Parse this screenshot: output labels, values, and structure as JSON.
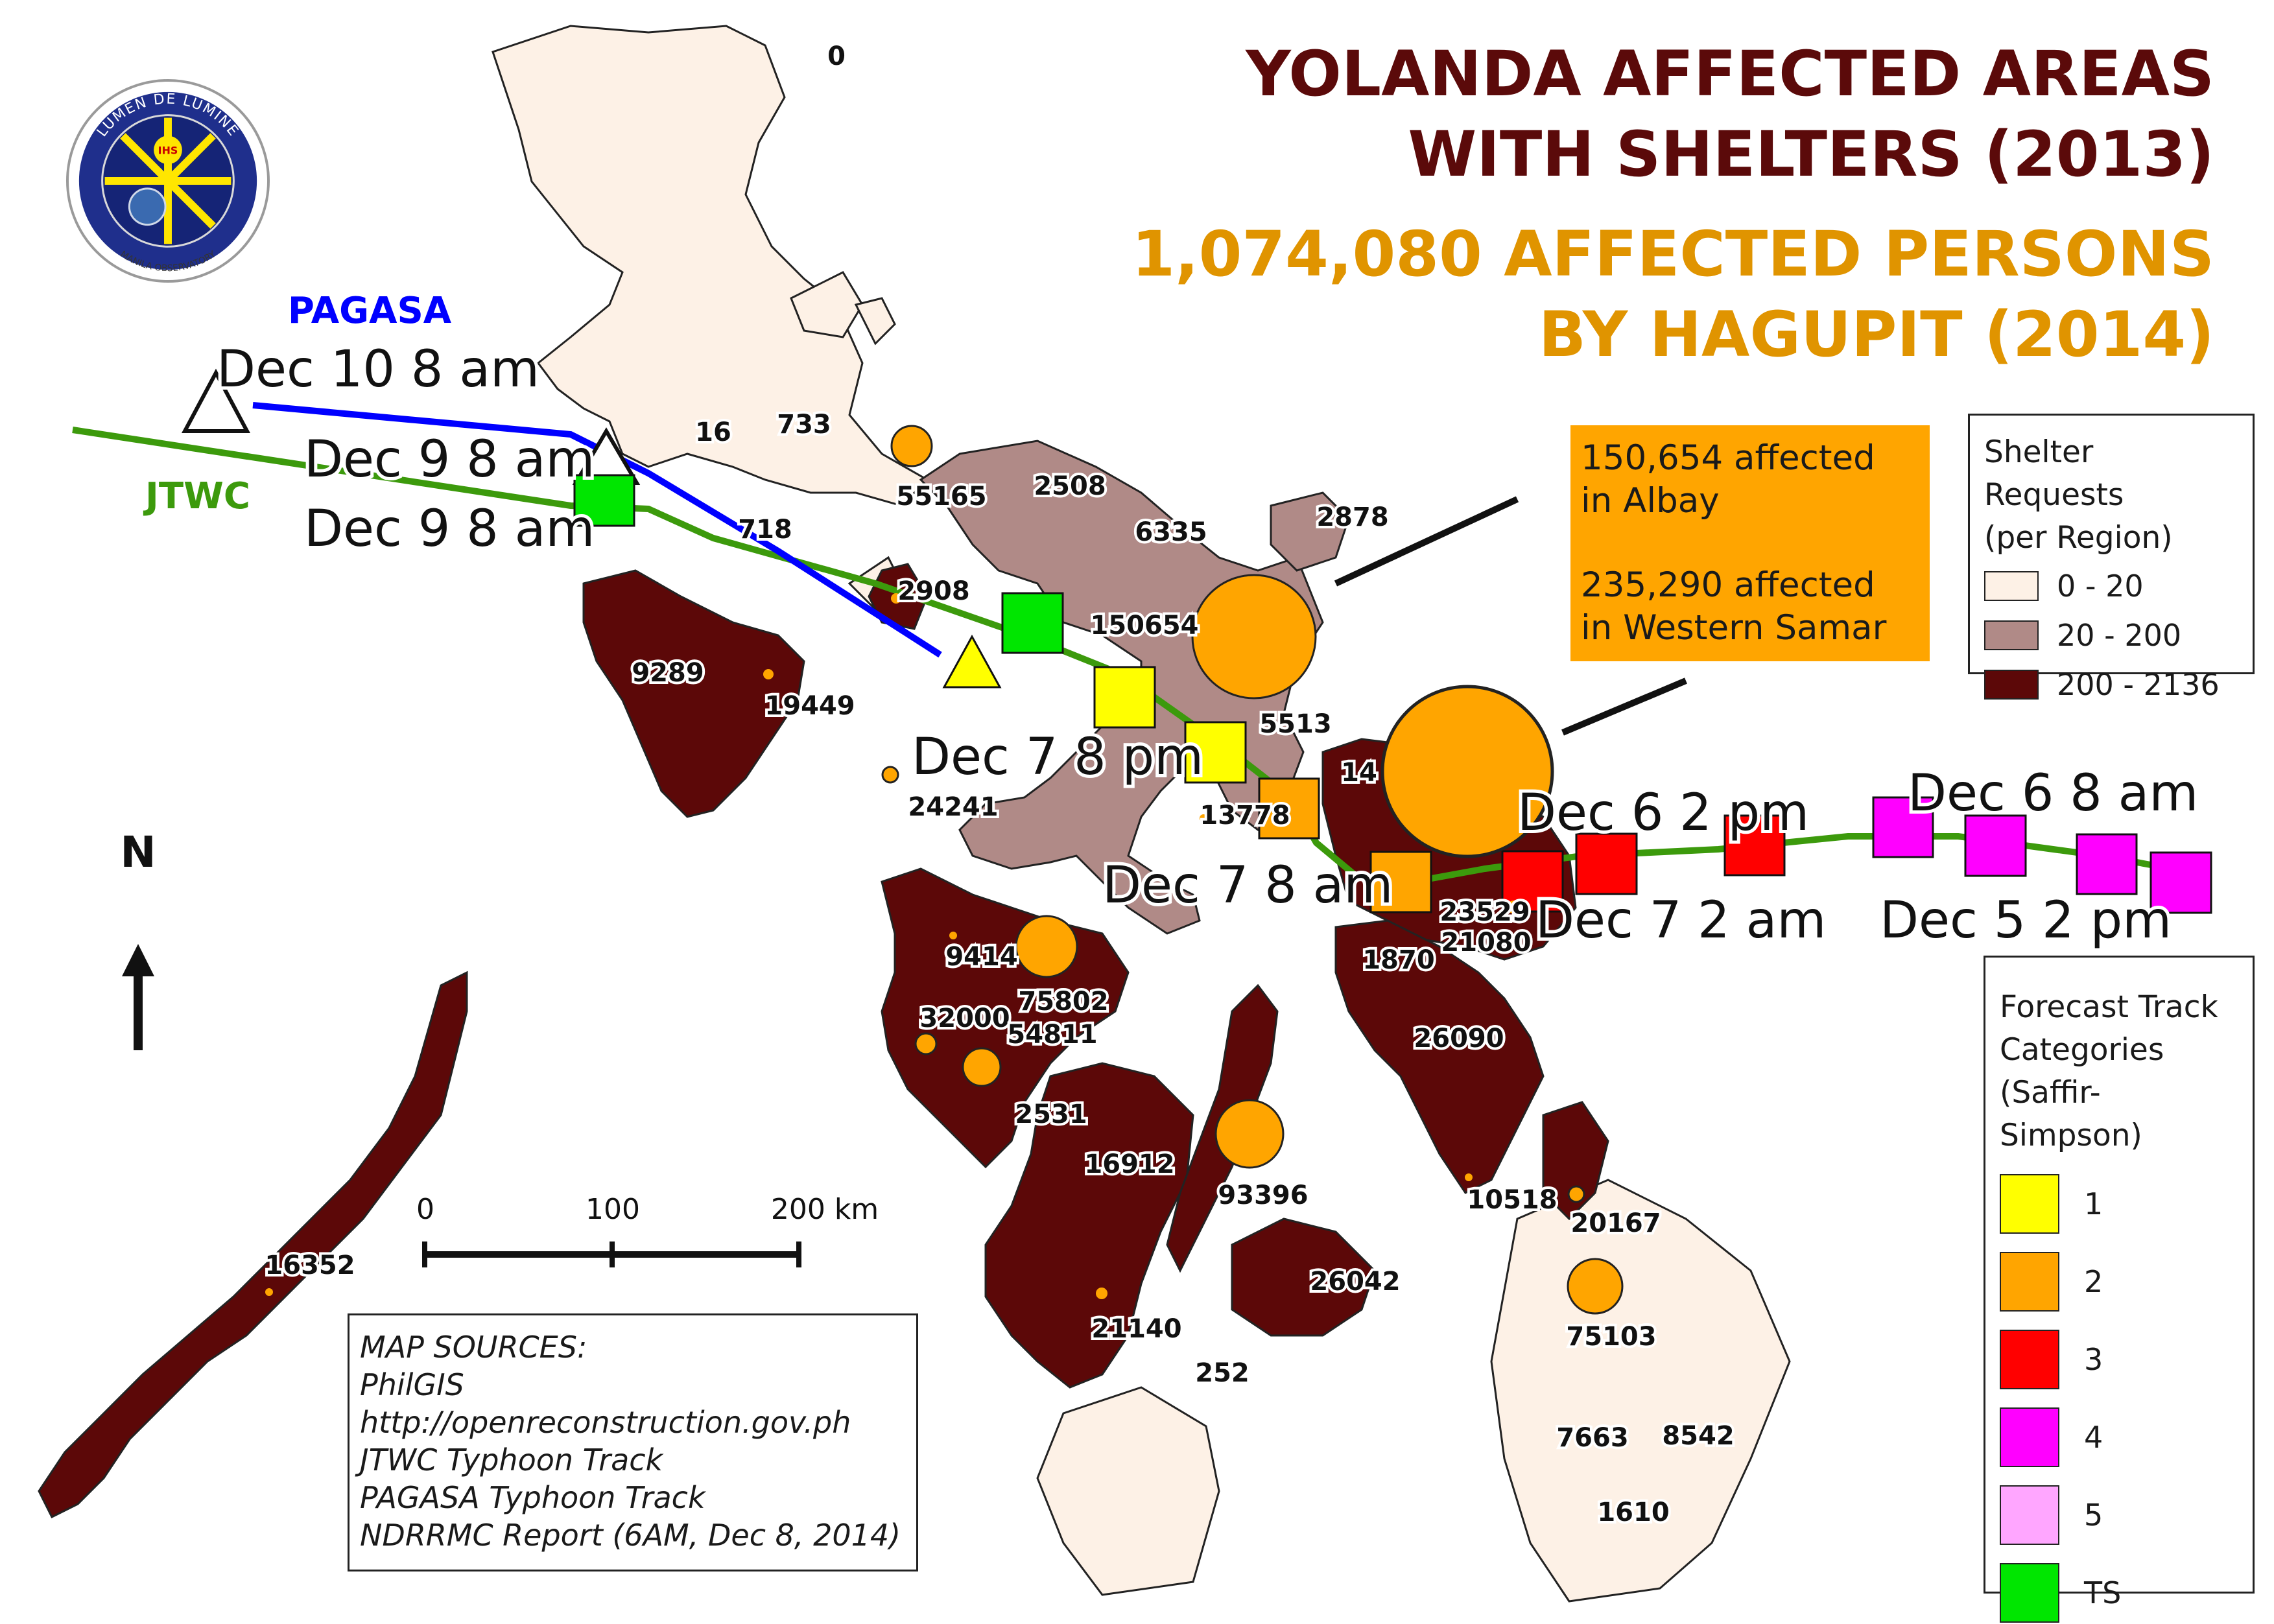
{
  "title": {
    "line1": "YOLANDA AFFECTED AREAS",
    "line2": "WITH SHELTERS (2013)",
    "sub1": "1,074,080 AFFECTED PERSONS",
    "sub2": "BY HAGUPIT (2014)"
  },
  "callout": {
    "albay": "150,654 affected\nin Albay",
    "samar": "235,290 affected\nin Western Samar"
  },
  "logo": {
    "ring_text": "LUMEN DE LUMINE",
    "bottom_text": "MANILA OBSERVATORY",
    "center": "IHS"
  },
  "colors": {
    "land_light": "#fdf1e6",
    "land_mid": "#b08a87",
    "land_dark": "#5c0808",
    "cat1": "#ffff00",
    "cat2": "#ffa500",
    "cat3": "#ff0000",
    "cat4": "#ff00ff",
    "cat5": "#ffa6ff",
    "ts": "#00e600",
    "pagasa": "#0000ff",
    "jtwc": "#3c9a0c"
  },
  "shelter_legend": {
    "title": "Shelter Requests\n(per Region)",
    "items": [
      {
        "label": "0 - 20",
        "color": "#fdf1e6"
      },
      {
        "label": "20 - 200",
        "color": "#b08a87"
      },
      {
        "label": "200 - 2136",
        "color": "#5c0808"
      }
    ]
  },
  "forecast_legend": {
    "title": "Forecast Track\nCategories\n(Saffir-Simpson)",
    "items": [
      {
        "label": "1",
        "color": "#ffff00"
      },
      {
        "label": "2",
        "color": "#ffa500"
      },
      {
        "label": "3",
        "color": "#ff0000"
      },
      {
        "label": "4",
        "color": "#ff00ff"
      },
      {
        "label": "5",
        "color": "#ffa6ff"
      },
      {
        "label": "TS",
        "color": "#00e600"
      }
    ]
  },
  "sources": {
    "title": "MAP SOURCES:",
    "items": [
      "PhilGIS",
      "http://openreconstruction.gov.ph",
      "JTWC Typhoon Track",
      "PAGASA Typhoon Track",
      "NDRRMC Report (6AM, Dec 8, 2014)"
    ]
  },
  "scale": {
    "labels": [
      "0",
      "100",
      "200 km"
    ]
  },
  "north": "N",
  "track_labels": {
    "pagasa": "PAGASA",
    "jtwc": "JTWC",
    "dec10": "Dec 10 8 am",
    "dec9a": "Dec 9 8 am",
    "dec9b": "Dec 9 8 am",
    "dec7pm": "Dec 7 8 pm",
    "dec7am": "Dec 7 8 am",
    "dec6pm": "Dec 6 2 pm",
    "dec6am": "Dec 6 8 am",
    "dec72am": "Dec 7 2 am",
    "dec52pm": "Dec 5 2 pm"
  },
  "region_values": [
    {
      "id": "v0",
      "text": "0"
    },
    {
      "id": "v16",
      "text": "16"
    },
    {
      "id": "v733",
      "text": "733"
    },
    {
      "id": "v55165",
      "text": "55165"
    },
    {
      "id": "v2508",
      "text": "2508"
    },
    {
      "id": "v6335",
      "text": "6335"
    },
    {
      "id": "v2878",
      "text": "2878"
    },
    {
      "id": "v718",
      "text": "718"
    },
    {
      "id": "v2908",
      "text": "2908"
    },
    {
      "id": "v150654",
      "text": "150654"
    },
    {
      "id": "v9289",
      "text": "9289"
    },
    {
      "id": "v19449",
      "text": "19449"
    },
    {
      "id": "v5513",
      "text": "5513"
    },
    {
      "id": "v14",
      "text": "14"
    },
    {
      "id": "v24241",
      "text": "24241"
    },
    {
      "id": "v13778",
      "text": "13778"
    },
    {
      "id": "v23529",
      "text": "23529"
    },
    {
      "id": "v21080",
      "text": "21080"
    },
    {
      "id": "v1870",
      "text": "1870"
    },
    {
      "id": "v9414",
      "text": "9414"
    },
    {
      "id": "v75802",
      "text": "75802"
    },
    {
      "id": "v32000",
      "text": "32000"
    },
    {
      "id": "v54811",
      "text": "54811"
    },
    {
      "id": "v26090",
      "text": "26090"
    },
    {
      "id": "v2531",
      "text": "2531"
    },
    {
      "id": "v16912",
      "text": "16912"
    },
    {
      "id": "v93396",
      "text": "93396"
    },
    {
      "id": "v10518",
      "text": "10518"
    },
    {
      "id": "v20167",
      "text": "20167"
    },
    {
      "id": "v16352",
      "text": "16352"
    },
    {
      "id": "v26042",
      "text": "26042"
    },
    {
      "id": "v75103",
      "text": "75103"
    },
    {
      "id": "v21140",
      "text": "21140"
    },
    {
      "id": "v252",
      "text": "252"
    },
    {
      "id": "v7663",
      "text": "7663"
    },
    {
      "id": "v8542",
      "text": "8542"
    },
    {
      "id": "v1610",
      "text": "1610"
    }
  ]
}
